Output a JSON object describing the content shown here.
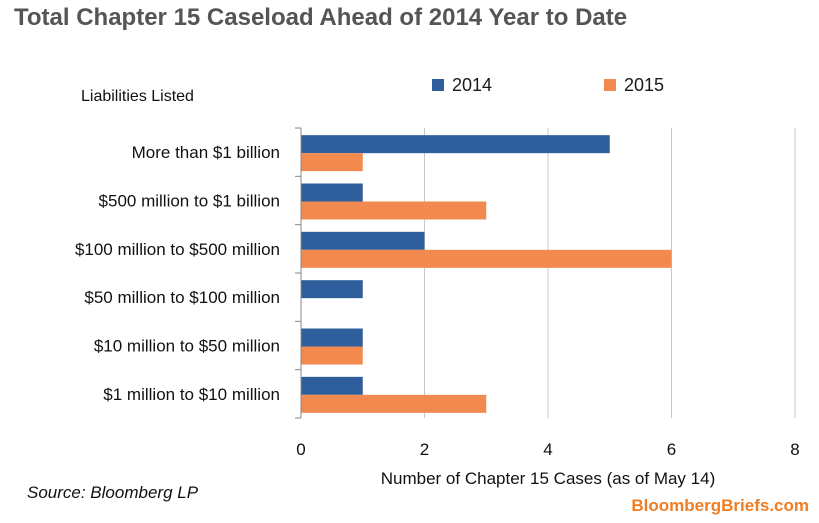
{
  "title": "Total Chapter 15 Caseload Ahead of 2014 Year to Date",
  "row_header": "Liabilities Listed",
  "source": "Source: Bloomberg LP",
  "brand": "BloombergBriefs.com",
  "colors": {
    "series_2014": "#2e5f9c",
    "series_2015": "#f28a4f",
    "grid": "#c8c8c8",
    "axis": "#888888"
  },
  "chart_data": {
    "type": "bar",
    "orientation": "horizontal",
    "categories": [
      "More than $1 billion",
      "$500 million to $1 billion",
      "$100 million to $500 million",
      "$50 million to $100 million",
      "$10 million to $50 million",
      "$1 million to $10 million"
    ],
    "series": [
      {
        "name": "2014",
        "values": [
          5,
          1,
          2,
          1,
          1,
          1
        ]
      },
      {
        "name": "2015",
        "values": [
          1,
          3,
          6,
          0,
          1,
          3
        ]
      }
    ],
    "xlabel": "Number of Chapter 15 Cases (as of May 14)",
    "xlim": [
      0,
      8
    ],
    "xticks": [
      0,
      2,
      4,
      6,
      8
    ],
    "grid": true,
    "legend_position": "top"
  }
}
